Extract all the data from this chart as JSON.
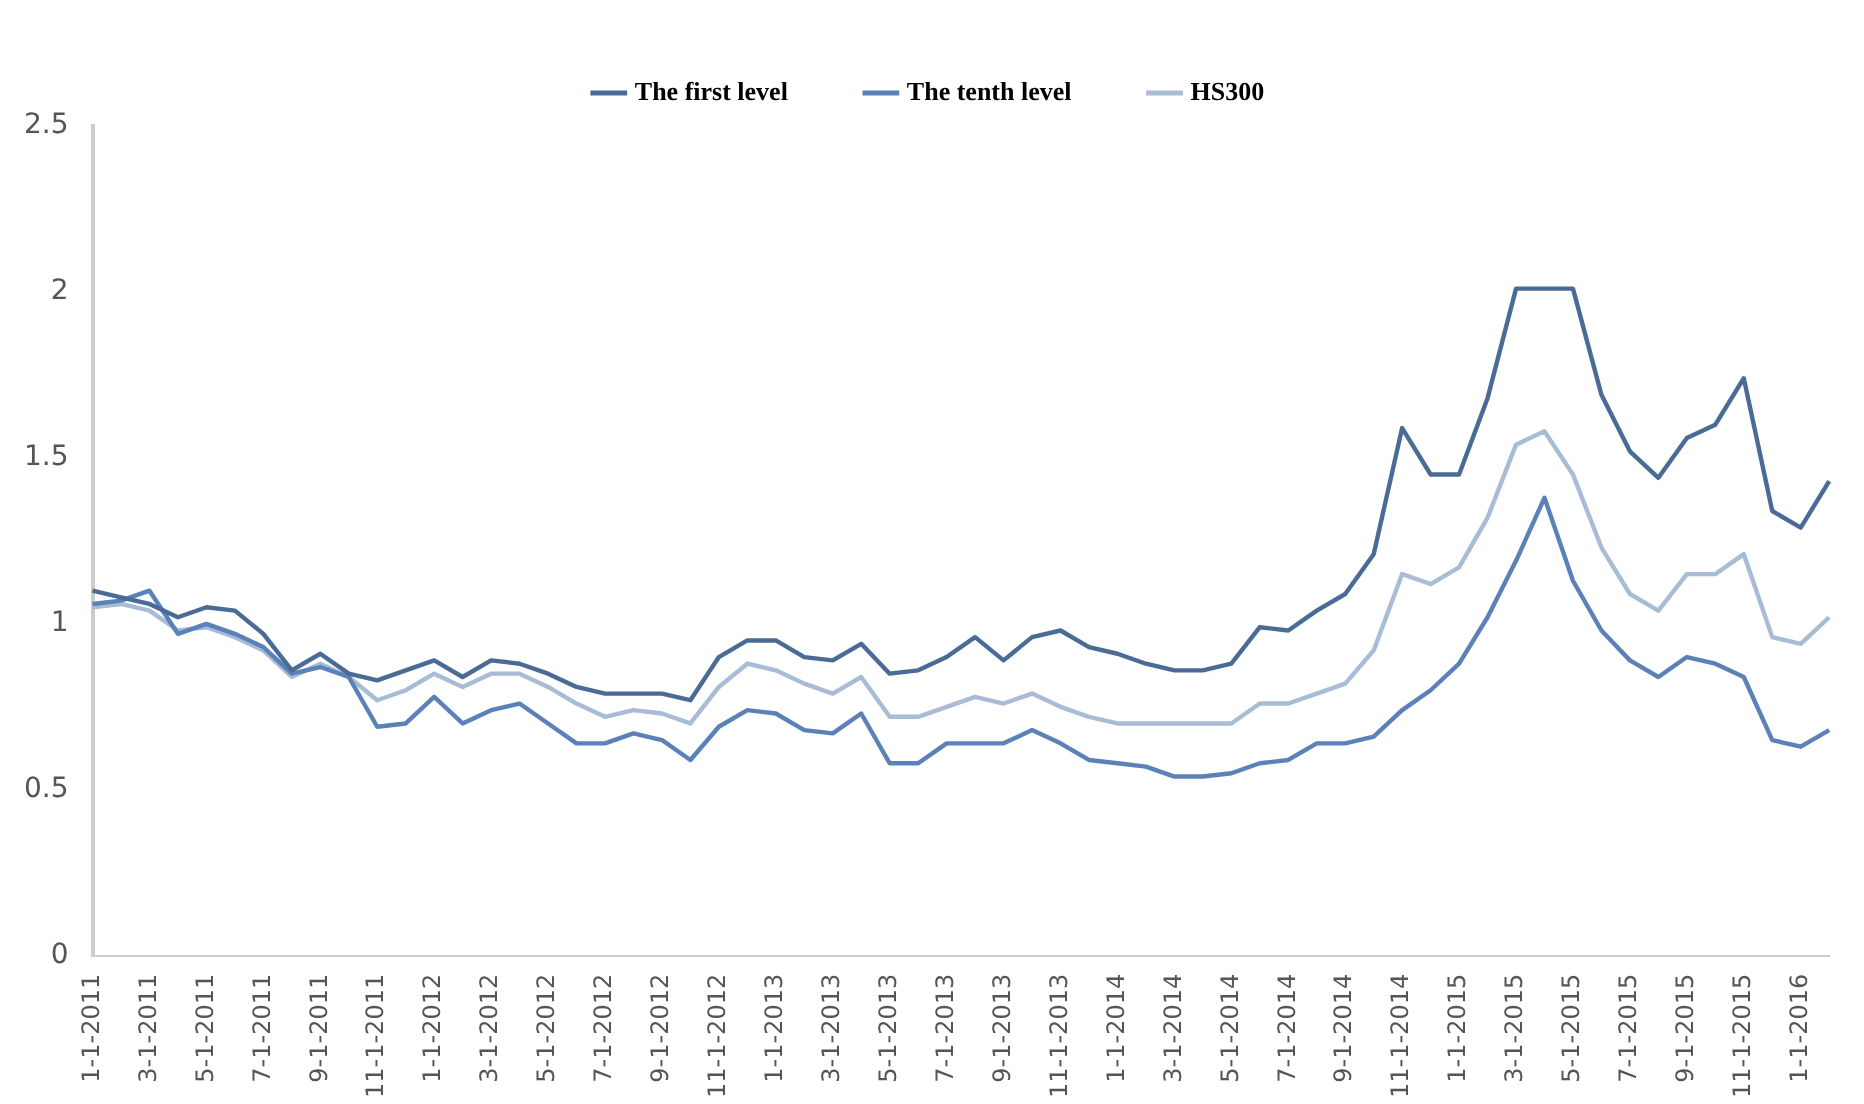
{
  "chart_data": {
    "type": "line",
    "categories": [
      "1-1-2011",
      null,
      "3-1-2011",
      null,
      "5-1-2011",
      null,
      "7-1-2011",
      null,
      "9-1-2011",
      null,
      "11-1-2011",
      null,
      "1-1-2012",
      null,
      "3-1-2012",
      null,
      "5-1-2012",
      null,
      "7-1-2012",
      null,
      "9-1-2012",
      null,
      "11-1-2012",
      null,
      "1-1-2013",
      null,
      "3-1-2013",
      null,
      "5-1-2013",
      null,
      "7-1-2013",
      null,
      "9-1-2013",
      null,
      "11-1-2013",
      null,
      "1-1-2014",
      null,
      "3-1-2014",
      null,
      "5-1-2014",
      null,
      "7-1-2014",
      null,
      "9-1-2014",
      null,
      "11-1-2014",
      null,
      "1-1-2015",
      null,
      "3-1-2015",
      null,
      "5-1-2015",
      null,
      "7-1-2015",
      null,
      "9-1-2015",
      null,
      "11-1-2015",
      null,
      "1-1-2016",
      null
    ],
    "series": [
      {
        "name": "The first level",
        "color": "#4a6b96",
        "values": [
          1.1,
          1.08,
          1.06,
          1.02,
          1.05,
          1.04,
          0.97,
          0.86,
          0.91,
          0.85,
          0.83,
          0.86,
          0.89,
          0.84,
          0.89,
          0.88,
          0.85,
          0.81,
          0.79,
          0.79,
          0.79,
          0.77,
          0.9,
          0.95,
          0.95,
          0.9,
          0.89,
          0.94,
          0.85,
          0.86,
          0.9,
          0.96,
          0.89,
          0.96,
          0.98,
          0.93,
          0.91,
          0.88,
          0.86,
          0.86,
          0.88,
          0.99,
          0.98,
          1.04,
          1.09,
          1.21,
          1.59,
          1.45,
          1.45,
          1.68,
          2.01,
          2.01,
          2.01,
          1.69,
          1.52,
          1.44,
          1.56,
          1.6,
          1.74,
          1.34,
          1.29,
          1.43
        ]
      },
      {
        "name": "The tenth level",
        "color": "#5a82b8",
        "values": [
          1.06,
          1.07,
          1.1,
          0.97,
          1.0,
          0.97,
          0.93,
          0.85,
          0.87,
          0.84,
          0.69,
          0.7,
          0.78,
          0.7,
          0.74,
          0.76,
          0.7,
          0.64,
          0.64,
          0.67,
          0.65,
          0.59,
          0.69,
          0.74,
          0.73,
          0.68,
          0.67,
          0.73,
          0.58,
          0.58,
          0.64,
          0.64,
          0.64,
          0.68,
          0.64,
          0.59,
          0.58,
          0.57,
          0.54,
          0.54,
          0.55,
          0.58,
          0.59,
          0.64,
          0.64,
          0.66,
          0.74,
          0.8,
          0.88,
          1.02,
          1.19,
          1.38,
          1.13,
          0.98,
          0.89,
          0.84,
          0.9,
          0.88,
          0.84,
          0.65,
          0.63,
          0.68
        ]
      },
      {
        "name": "HS300",
        "color": "#a9bcd6",
        "values": [
          1.05,
          1.06,
          1.04,
          0.98,
          0.99,
          0.96,
          0.92,
          0.84,
          0.88,
          0.84,
          0.77,
          0.8,
          0.85,
          0.81,
          0.85,
          0.85,
          0.81,
          0.76,
          0.72,
          0.74,
          0.73,
          0.7,
          0.81,
          0.88,
          0.86,
          0.82,
          0.79,
          0.84,
          0.72,
          0.72,
          0.75,
          0.78,
          0.76,
          0.79,
          0.75,
          0.72,
          0.7,
          0.7,
          0.7,
          0.7,
          0.7,
          0.76,
          0.76,
          0.79,
          0.82,
          0.92,
          1.15,
          1.12,
          1.17,
          1.32,
          1.54,
          1.58,
          1.45,
          1.23,
          1.09,
          1.04,
          1.15,
          1.15,
          1.21,
          0.96,
          0.94,
          1.02
        ]
      }
    ],
    "ylim": [
      0,
      2.5
    ],
    "yticks": [
      0,
      0.5,
      1,
      1.5,
      2,
      2.5
    ],
    "grid": false,
    "legend": "top",
    "marker": "none",
    "line_style": "solid"
  }
}
